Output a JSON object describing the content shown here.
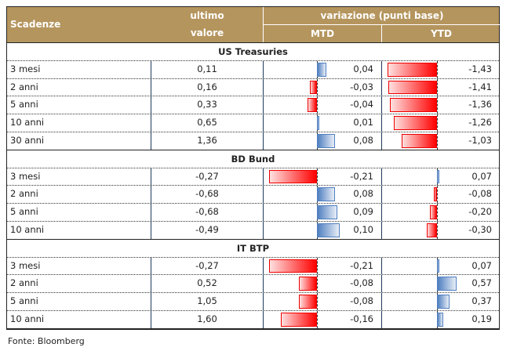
{
  "header": {
    "col1": "Scadenze",
    "col2_line1": "ultimo",
    "col2_line2": "valore",
    "group": "variazione (punti base)",
    "mtd": "MTD",
    "ytd": "YTD"
  },
  "sections": [
    {
      "title": "US Treasuries",
      "rows": [
        {
          "label": "3 mesi",
          "last": "0,11",
          "mtd": "0,04",
          "ytd": "-1,43"
        },
        {
          "label": "2 anni",
          "last": "0,16",
          "mtd": "-0,03",
          "ytd": "-1,41"
        },
        {
          "label": "5 anni",
          "last": "0,33",
          "mtd": "-0,04",
          "ytd": "-1,36"
        },
        {
          "label": "10 anni",
          "last": "0,65",
          "mtd": "0,01",
          "ytd": "-1,26"
        },
        {
          "label": "30 anni",
          "last": "1,36",
          "mtd": "0,08",
          "ytd": "-1,03"
        }
      ]
    },
    {
      "title": "BD Bund",
      "rows": [
        {
          "label": "3 mesi",
          "last": "-0,27",
          "mtd": "-0,21",
          "ytd": "0,07"
        },
        {
          "label": "2 anni",
          "last": "-0,68",
          "mtd": "0,08",
          "ytd": "-0,08"
        },
        {
          "label": "5 anni",
          "last": "-0,68",
          "mtd": "0,09",
          "ytd": "-0,20"
        },
        {
          "label": "10 anni",
          "last": "-0,49",
          "mtd": "0,10",
          "ytd": "-0,30"
        }
      ]
    },
    {
      "title": "IT BTP",
      "rows": [
        {
          "label": "3 mesi",
          "last": "-0,27",
          "mtd": "-0,21",
          "ytd": "0,07"
        },
        {
          "label": "2 anni",
          "last": "0,52",
          "mtd": "-0,08",
          "ytd": "0,57"
        },
        {
          "label": "5 anni",
          "last": "1,05",
          "mtd": "-0,08",
          "ytd": "0,37"
        },
        {
          "label": "10 anni",
          "last": "1,60",
          "mtd": "-0,16",
          "ytd": "0,19"
        }
      ]
    }
  ],
  "source": "Fonte: Bloomberg",
  "colors": {
    "header": "#b5955e",
    "negative": "#ff0000",
    "positive": "#4f7fc0"
  }
}
